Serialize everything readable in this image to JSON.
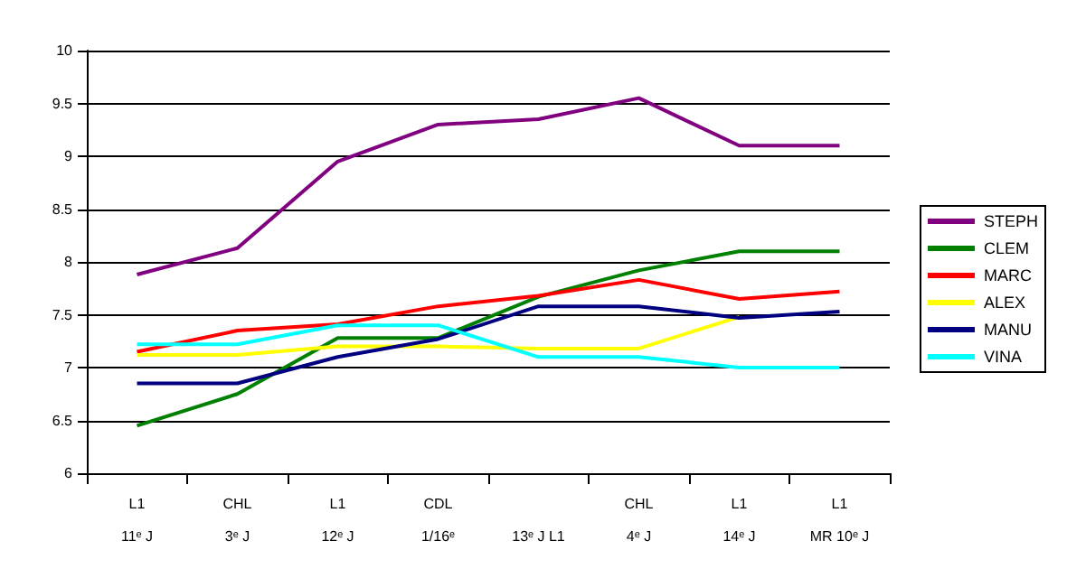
{
  "chart_data": {
    "type": "line",
    "categories": [
      "L1\n11ᵉ J",
      "CHL\n3ᵉ J",
      "L1\n12ᵉ J",
      "CDL\n1/16ᵉ",
      "\n13ᵉ J L1",
      "CHL\n4ᵉ J",
      "L1\n14ᵉ J",
      "L1\nMR 10ᵉ J"
    ],
    "series": [
      {
        "name": "STEPH",
        "color": "#800080",
        "values": [
          7.88,
          8.13,
          8.95,
          9.3,
          9.35,
          9.55,
          9.1,
          9.1
        ]
      },
      {
        "name": "CLEM",
        "color": "#008000",
        "values": [
          6.45,
          6.75,
          7.28,
          7.28,
          7.67,
          7.92,
          8.1,
          8.1
        ]
      },
      {
        "name": "MARC",
        "color": "#ff0000",
        "values": [
          7.15,
          7.35,
          7.41,
          7.58,
          7.68,
          7.83,
          7.65,
          7.72
        ]
      },
      {
        "name": "ALEX",
        "color": "#ffff00",
        "values": [
          7.12,
          7.12,
          7.2,
          7.2,
          7.18,
          7.18,
          7.48,
          null
        ]
      },
      {
        "name": "MANU",
        "color": "#000080",
        "values": [
          6.85,
          6.85,
          7.1,
          7.27,
          7.58,
          7.58,
          7.47,
          7.53
        ]
      },
      {
        "name": "VINA",
        "color": "#00ffff",
        "values": [
          7.22,
          7.22,
          7.4,
          7.4,
          7.1,
          7.1,
          7.0,
          7.0
        ]
      }
    ],
    "ylim": [
      6,
      10
    ],
    "yticks": [
      6,
      6.5,
      7,
      7.5,
      8,
      8.5,
      9,
      9.5,
      10
    ],
    "grid": "y",
    "legend": "right",
    "marker": "none"
  }
}
